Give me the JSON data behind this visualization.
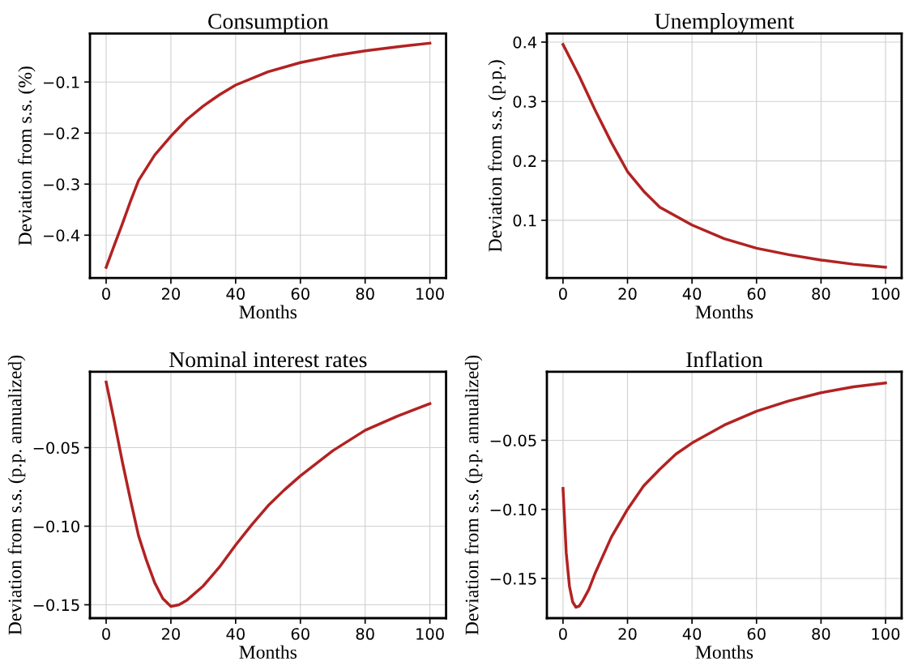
{
  "chart_data": [
    {
      "type": "line",
      "title": "Consumption",
      "xlabel": "Months",
      "ylabel": "Deviation from s.s. (%)",
      "grid": true,
      "xlim": [
        -5,
        105
      ],
      "xticks": [
        0,
        20,
        40,
        60,
        80,
        100
      ],
      "ylim": [
        -0.484,
        -0.005
      ],
      "yticks": [
        {
          "value": -0.1,
          "label": "−0.1"
        },
        {
          "value": -0.2,
          "label": "−0.2"
        },
        {
          "value": -0.3,
          "label": "−0.3"
        },
        {
          "value": -0.4,
          "label": "−0.4"
        }
      ],
      "series": [
        {
          "color": "#b22222",
          "x": [
            0,
            2.5,
            5,
            7.5,
            10,
            15,
            20,
            25,
            30,
            35,
            40,
            50,
            60,
            70,
            80,
            90,
            100
          ],
          "values": [
            -0.463,
            -0.42,
            -0.378,
            -0.334,
            -0.293,
            -0.243,
            -0.206,
            -0.173,
            -0.147,
            -0.125,
            -0.106,
            -0.08,
            -0.062,
            -0.049,
            -0.039,
            -0.031,
            -0.024
          ]
        }
      ]
    },
    {
      "type": "line",
      "title": "Unemployment",
      "xlabel": "Months",
      "ylabel": "Deviation from s.s. (p.p.)",
      "grid": true,
      "xlim": [
        -5,
        105
      ],
      "xticks": [
        0,
        20,
        40,
        60,
        80,
        100
      ],
      "ylim": [
        0.0027,
        0.4145
      ],
      "yticks": [
        0.1,
        0.2,
        0.3,
        0.4
      ],
      "series": [
        {
          "color": "#b22222",
          "x": [
            0,
            5,
            10,
            15,
            20,
            25,
            30,
            40,
            50,
            60,
            70,
            80,
            90,
            100
          ],
          "values": [
            0.396,
            0.343,
            0.285,
            0.231,
            0.182,
            0.149,
            0.122,
            0.092,
            0.069,
            0.053,
            0.042,
            0.033,
            0.026,
            0.021
          ]
        }
      ]
    },
    {
      "type": "line",
      "title": "Nominal interest rates",
      "xlabel": "Months",
      "ylabel": "Deviation from s.s. (p.p. annualized)",
      "grid": true,
      "xlim": [
        -5,
        105
      ],
      "xticks": [
        0,
        20,
        40,
        60,
        80,
        100
      ],
      "ylim": [
        -0.1585,
        -0.0018
      ],
      "yticks": [
        {
          "value": -0.05,
          "label": "−0.05"
        },
        {
          "value": -0.1,
          "label": "−0.10"
        },
        {
          "value": -0.15,
          "label": "−0.15"
        }
      ],
      "series": [
        {
          "color": "#b22222",
          "x": [
            0,
            2.5,
            5,
            7.5,
            10,
            12.5,
            15,
            17.5,
            20,
            22.5,
            25,
            30,
            35,
            40,
            45,
            50,
            55,
            60,
            70,
            80,
            90,
            100
          ],
          "values": [
            -0.0083,
            -0.033,
            -0.059,
            -0.083,
            -0.106,
            -0.122,
            -0.136,
            -0.146,
            -0.151,
            -0.15,
            -0.147,
            -0.138,
            -0.126,
            -0.112,
            -0.099,
            -0.087,
            -0.077,
            -0.068,
            -0.052,
            -0.039,
            -0.03,
            -0.022
          ]
        }
      ]
    },
    {
      "type": "line",
      "title": "Inflation",
      "xlabel": "Months",
      "ylabel": "Deviation from s.s. (p.p. annualized)",
      "grid": true,
      "xlim": [
        -5,
        105
      ],
      "xticks": [
        0,
        20,
        40,
        60,
        80,
        100
      ],
      "ylim": [
        -0.1787,
        -0.0005
      ],
      "yticks": [
        {
          "value": -0.05,
          "label": "−0.05"
        },
        {
          "value": -0.1,
          "label": "−0.10"
        },
        {
          "value": -0.15,
          "label": "−0.15"
        }
      ],
      "series": [
        {
          "color": "#b22222",
          "x": [
            0,
            1,
            2,
            3,
            4,
            5,
            6,
            8,
            10,
            15,
            20,
            25,
            30,
            35,
            40,
            50,
            60,
            70,
            80,
            90,
            100
          ],
          "values": [
            -0.0848,
            -0.1316,
            -0.1557,
            -0.167,
            -0.1708,
            -0.17,
            -0.1666,
            -0.158,
            -0.146,
            -0.12,
            -0.1,
            -0.083,
            -0.071,
            -0.06,
            -0.052,
            -0.039,
            -0.029,
            -0.0215,
            -0.0156,
            -0.0114,
            -0.0085
          ]
        }
      ]
    }
  ]
}
